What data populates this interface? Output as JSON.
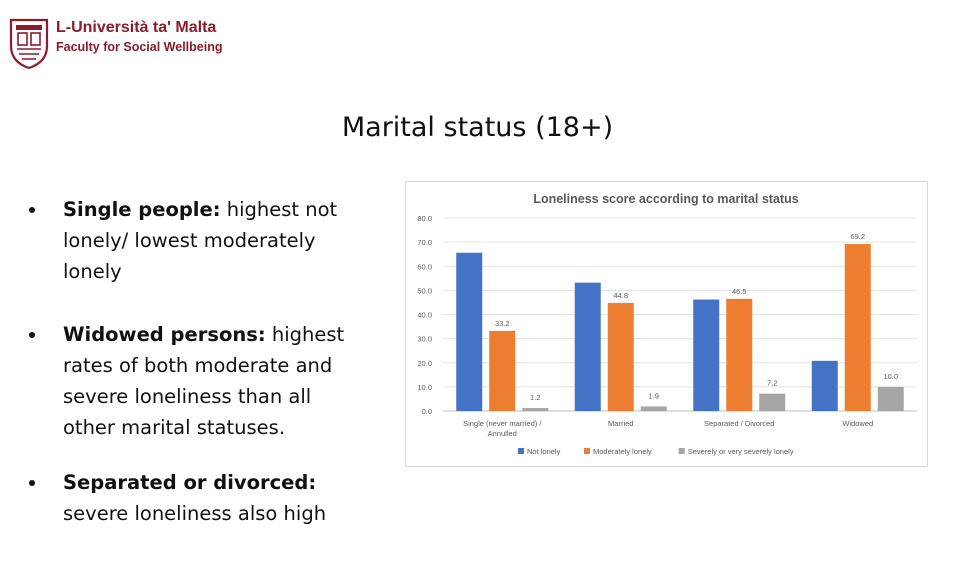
{
  "header": {
    "university": "L-Università ta' Malta",
    "faculty": "Faculty for Social Wellbeing",
    "logo_icon": "university-crest-icon",
    "brand_color": "#8a1c2b"
  },
  "slide": {
    "title": "Marital status (18+)"
  },
  "bullets": [
    {
      "lead": "Single people:",
      "text": " highest not lonely/ lowest moderately lonely"
    },
    {
      "lead": "Widowed persons:",
      "text": " highest rates of both moderate and severe loneliness than all other marital statuses."
    },
    {
      "lead": "Separated or divorced:",
      "text": " severe loneliness also high"
    }
  ],
  "chart_data": {
    "type": "bar",
    "title": "Loneliness score according to marital status",
    "categories": [
      "Single (never married) / Annulled",
      "Married",
      "Separated / Divorced",
      "Widowed"
    ],
    "series": [
      {
        "name": "Not lonely",
        "color": "#4472c4",
        "values": [
          65.6,
          53.2,
          46.2,
          20.8
        ]
      },
      {
        "name": "Moderately lonely",
        "color": "#ed7d31",
        "values": [
          33.2,
          44.8,
          46.5,
          69.2
        ]
      },
      {
        "name": "Severely or very severely lonely",
        "color": "#a5a5a5",
        "values": [
          1.2,
          1.9,
          7.2,
          10.0
        ]
      }
    ],
    "data_labels": [
      [
        "",
        "33.2",
        "1.2"
      ],
      [
        "",
        "44.8",
        "1.9"
      ],
      [
        "",
        "46.5",
        "7.2"
      ],
      [
        "",
        "69.2",
        "10.0"
      ]
    ],
    "yticks": [
      "0.0",
      "10.0",
      "20.0",
      "30.0",
      "40.0",
      "50.0",
      "60.0",
      "70.0",
      "80.0"
    ],
    "ylim": [
      0,
      80
    ],
    "grid": true,
    "legend": "bottom"
  }
}
